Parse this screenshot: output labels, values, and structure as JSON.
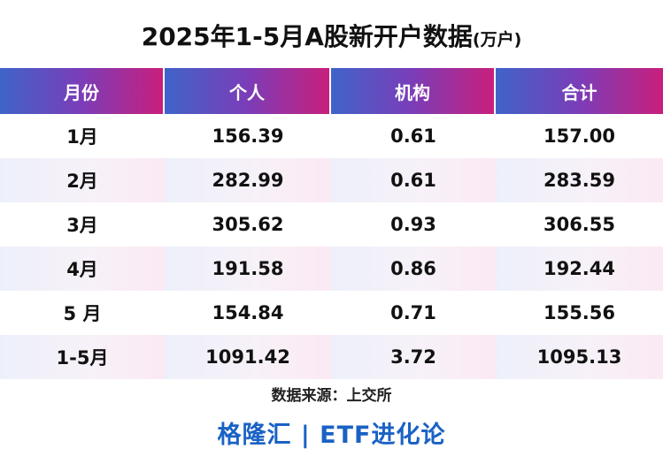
{
  "title": "2025年1-5月A股新开户数据",
  "title_unit": "(万户)",
  "headers": [
    "月份",
    "个人",
    "机构",
    "合计"
  ],
  "rows": [
    [
      "1月",
      "156.39",
      "0.61",
      "157.00"
    ],
    [
      "2月",
      "282.99",
      "0.61",
      "283.59"
    ],
    [
      "3月",
      "305.62",
      "0.93",
      "306.55"
    ],
    [
      "4月",
      "191.58",
      "0.86",
      "192.44"
    ],
    [
      "5 月",
      "154.84",
      "0.71",
      "155.56"
    ],
    [
      "1-5月",
      "1091.42",
      "3.72",
      "1095.13"
    ]
  ],
  "source": "数据来源：上交所",
  "footer": "格隆汇 | ETF进化论",
  "colors": {
    "header_gradient_start": "#3f64c9",
    "header_gradient_mid": "#7b3db8",
    "header_gradient_end": "#c81f7c",
    "footer_text": "#1a62c4",
    "alt_row_tint": "#f3eef8"
  }
}
